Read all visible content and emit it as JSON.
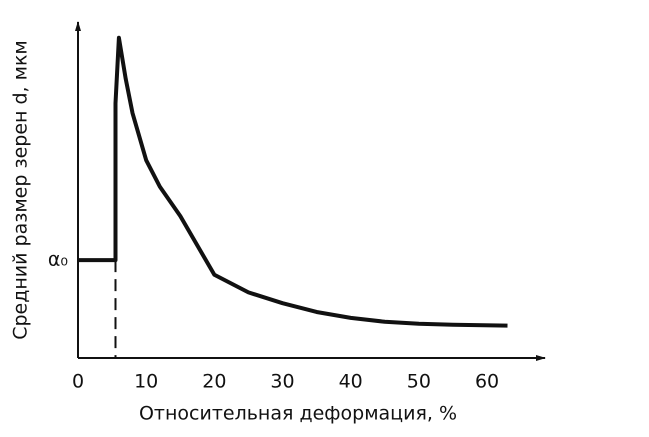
{
  "chart_data": {
    "type": "line",
    "xlabel": "Относительная деформация, %",
    "ylabel": "Средний размер зерен d,  мкм",
    "x": [
      0,
      5.5,
      5.5,
      6,
      7,
      8,
      10,
      12,
      15,
      20,
      25,
      30,
      35,
      40,
      45,
      50,
      55,
      63
    ],
    "values": [
      1,
      1,
      2.6,
      3.27,
      2.85,
      2.5,
      2.02,
      1.75,
      1.45,
      0.85,
      0.67,
      0.56,
      0.47,
      0.41,
      0.37,
      0.35,
      0.34,
      0.33
    ],
    "color": "#111111",
    "xlim": [
      0,
      68.5
    ],
    "ylim": [
      0,
      3.37
    ],
    "xticks": [
      0,
      10,
      20,
      30,
      40,
      50,
      60
    ],
    "yticks": [
      {
        "value": 1,
        "label": "α₀"
      }
    ],
    "grid": false
  }
}
